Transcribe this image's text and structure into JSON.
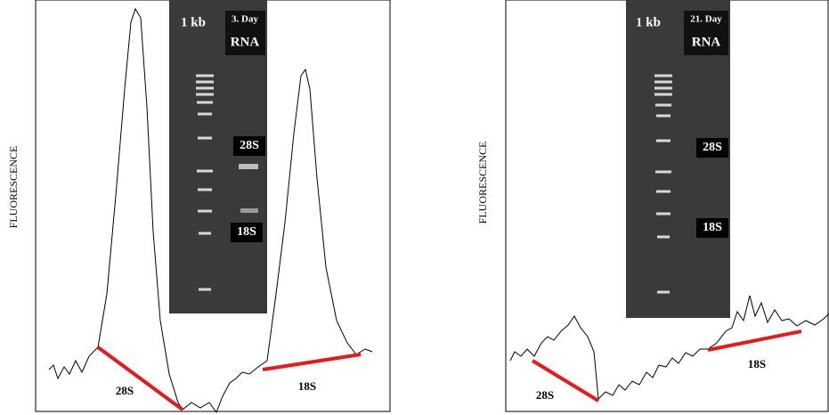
{
  "panels": [
    {
      "y_label": "FLUORESCENCE",
      "ladder": "1 kb",
      "day": "3. Day",
      "sample": "RNA",
      "gel_bands": [
        "28S",
        "18S"
      ],
      "peaks": [
        "28S",
        "18S"
      ]
    },
    {
      "y_label": "FLUORESCENCE",
      "ladder": "1 kb",
      "day": "21. Day",
      "sample": "RNA",
      "gel_bands": [
        "28S",
        "18S"
      ],
      "peaks": [
        "28S",
        "18S"
      ]
    }
  ]
}
